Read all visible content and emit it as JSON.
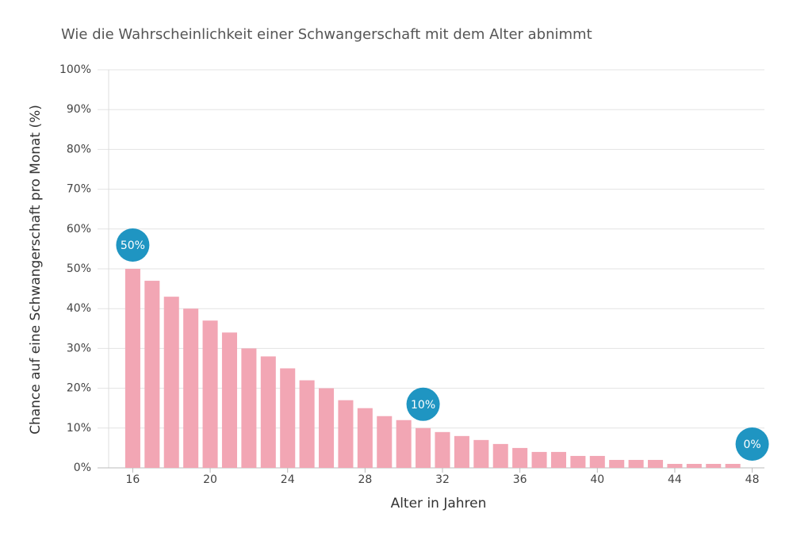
{
  "chart_data": {
    "type": "bar",
    "title": "Wie die Wahrscheinlichkeit einer Schwangerschaft mit dem Alter abnimmt",
    "x_label": "Alter in Jahren",
    "y_label": "Chance auf eine Schwangerschaft pro Monat (%)",
    "x": [
      16,
      17,
      18,
      19,
      20,
      21,
      22,
      23,
      24,
      25,
      26,
      27,
      28,
      29,
      30,
      31,
      32,
      33,
      34,
      35,
      36,
      37,
      38,
      39,
      40,
      41,
      42,
      43,
      44,
      45,
      46,
      47,
      48
    ],
    "values": [
      50,
      47,
      43,
      40,
      37,
      34,
      30,
      28,
      25,
      22,
      20,
      17,
      15,
      13,
      12,
      10,
      9,
      8,
      7,
      6,
      5,
      4,
      4,
      3,
      3,
      2,
      2,
      2,
      1,
      1,
      1,
      1,
      0
    ],
    "color": "#f2a6b4",
    "xlim": [
      15,
      49
    ],
    "xticks": [
      16,
      20,
      24,
      28,
      32,
      36,
      40,
      44,
      48
    ],
    "ylim": [
      0,
      100
    ],
    "yticks": [
      {
        "value": 0,
        "label": "0%"
      },
      {
        "value": 10,
        "label": "10%"
      },
      {
        "value": 20,
        "label": "20%"
      },
      {
        "value": 30,
        "label": "30%"
      },
      {
        "value": 40,
        "label": "40%"
      },
      {
        "value": 50,
        "label": "50%"
      },
      {
        "value": 60,
        "label": "60%"
      },
      {
        "value": 70,
        "label": "70%"
      },
      {
        "value": 80,
        "label": "80%"
      },
      {
        "value": 90,
        "label": "90%"
      },
      {
        "value": 100,
        "label": "100%"
      }
    ],
    "grid": true,
    "annotations": [
      {
        "x": 16,
        "y": 50,
        "label": "50%",
        "color": "#1f95c2"
      },
      {
        "x": 31,
        "y": 10,
        "label": "10%",
        "color": "#1f95c2"
      },
      {
        "x": 48,
        "y": 0,
        "label": "0%",
        "color": "#1f95c2"
      }
    ]
  }
}
